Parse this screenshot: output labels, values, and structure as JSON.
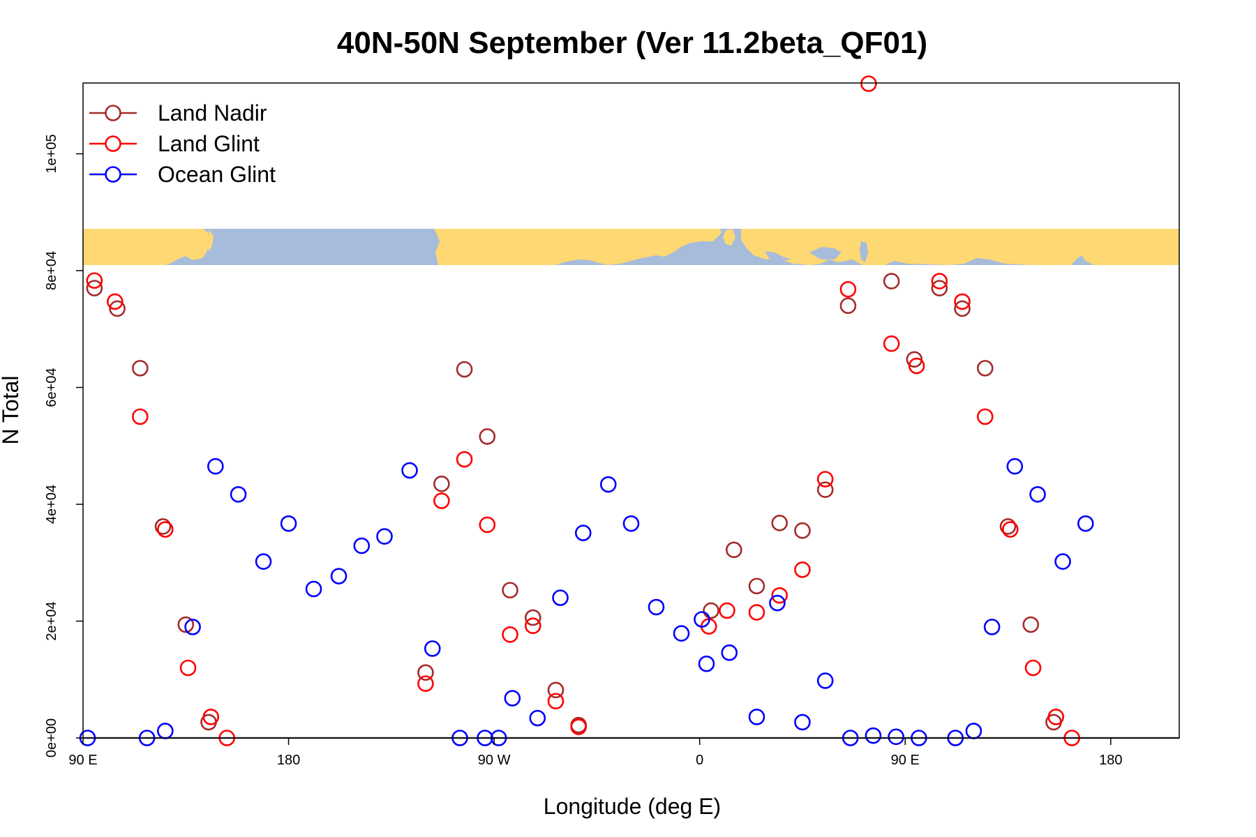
{
  "chart_data": {
    "type": "scatter",
    "title": "40N-50N September (Ver 11.2beta_QF01)",
    "xlabel": "Longitude (deg E)",
    "ylabel": "N Total",
    "xlim": [
      90,
      570
    ],
    "ylim": [
      0,
      112000
    ],
    "x_ticks": [
      {
        "value": 90,
        "label": "90 E"
      },
      {
        "value": 180,
        "label": "180"
      },
      {
        "value": 270,
        "label": "90 W"
      },
      {
        "value": 360,
        "label": "0"
      },
      {
        "value": 450,
        "label": "90 E"
      },
      {
        "value": 540,
        "label": "180"
      }
    ],
    "y_ticks": [
      {
        "value": 0,
        "label": "0e+00"
      },
      {
        "value": 20000,
        "label": "2e+04"
      },
      {
        "value": 40000,
        "label": "4e+04"
      },
      {
        "value": 60000,
        "label": "6e+04"
      },
      {
        "value": 80000,
        "label": "8e+04"
      },
      {
        "value": 100000,
        "label": "1e+05"
      }
    ],
    "legend_position": "top-left",
    "map_strip_lat_range": "40N-50N",
    "series": [
      {
        "name": "Land Nadir",
        "color": "#A52A2A",
        "points": [
          [
            95,
            77000
          ],
          [
            105,
            73500
          ],
          [
            115,
            63300
          ],
          [
            125,
            36200
          ],
          [
            135,
            19400
          ],
          [
            145,
            2700
          ],
          [
            240,
            11200
          ],
          [
            247,
            43500
          ],
          [
            257,
            63100
          ],
          [
            267,
            51600
          ],
          [
            277,
            25300
          ],
          [
            287,
            20600
          ],
          [
            297,
            8200
          ],
          [
            307,
            2200
          ],
          [
            365,
            21800
          ],
          [
            375,
            32200
          ],
          [
            385,
            26000
          ],
          [
            395,
            36800
          ],
          [
            405,
            35500
          ],
          [
            415,
            42500
          ],
          [
            425,
            74000
          ],
          [
            444,
            78200
          ],
          [
            454,
            64800
          ],
          [
            465,
            77000
          ],
          [
            475,
            73500
          ],
          [
            485,
            63300
          ],
          [
            495,
            36200
          ],
          [
            505,
            19400
          ],
          [
            515,
            2700
          ]
        ]
      },
      {
        "name": "Land Glint",
        "color": "#FF0000",
        "points": [
          [
            95,
            78300
          ],
          [
            104,
            74700
          ],
          [
            115,
            55000
          ],
          [
            126,
            35700
          ],
          [
            136,
            12000
          ],
          [
            146,
            3600
          ],
          [
            153,
            0
          ],
          [
            240,
            9300
          ],
          [
            247,
            40600
          ],
          [
            257,
            47700
          ],
          [
            267,
            36500
          ],
          [
            277,
            17700
          ],
          [
            287,
            19200
          ],
          [
            297,
            6300
          ],
          [
            307,
            1900
          ],
          [
            364,
            19100
          ],
          [
            372,
            21800
          ],
          [
            385,
            21500
          ],
          [
            395,
            24400
          ],
          [
            405,
            28800
          ],
          [
            415,
            44300
          ],
          [
            425,
            76800
          ],
          [
            434,
            112000
          ],
          [
            444,
            67500
          ],
          [
            455,
            63700
          ],
          [
            465,
            78200
          ],
          [
            475,
            74700
          ],
          [
            485,
            55000
          ],
          [
            496,
            35700
          ],
          [
            506,
            12000
          ],
          [
            516,
            3600
          ],
          [
            523,
            0
          ]
        ]
      },
      {
        "name": "Ocean Glint",
        "color": "#0000FF",
        "points": [
          [
            92,
            0
          ],
          [
            118,
            0
          ],
          [
            126,
            1200
          ],
          [
            138,
            19000
          ],
          [
            148,
            46500
          ],
          [
            158,
            41700
          ],
          [
            169,
            30200
          ],
          [
            180,
            36700
          ],
          [
            191,
            25500
          ],
          [
            202,
            27700
          ],
          [
            212,
            32900
          ],
          [
            222,
            34500
          ],
          [
            233,
            45800
          ],
          [
            243,
            15300
          ],
          [
            255,
            0
          ],
          [
            266,
            0
          ],
          [
            272,
            0
          ],
          [
            278,
            6800
          ],
          [
            289,
            3400
          ],
          [
            299,
            24000
          ],
          [
            309,
            35100
          ],
          [
            320,
            43400
          ],
          [
            330,
            36700
          ],
          [
            341,
            22400
          ],
          [
            352,
            17900
          ],
          [
            361,
            20300
          ],
          [
            363,
            12700
          ],
          [
            373,
            14600
          ],
          [
            385,
            3600
          ],
          [
            394,
            23100
          ],
          [
            405,
            2700
          ],
          [
            415,
            9800
          ],
          [
            426,
            0
          ],
          [
            436,
            400
          ],
          [
            446,
            200
          ],
          [
            456,
            0
          ],
          [
            472,
            0
          ],
          [
            480,
            1200
          ],
          [
            488,
            19000
          ],
          [
            498,
            46500
          ],
          [
            508,
            41700
          ],
          [
            519,
            30200
          ],
          [
            529,
            36700
          ]
        ]
      }
    ]
  }
}
